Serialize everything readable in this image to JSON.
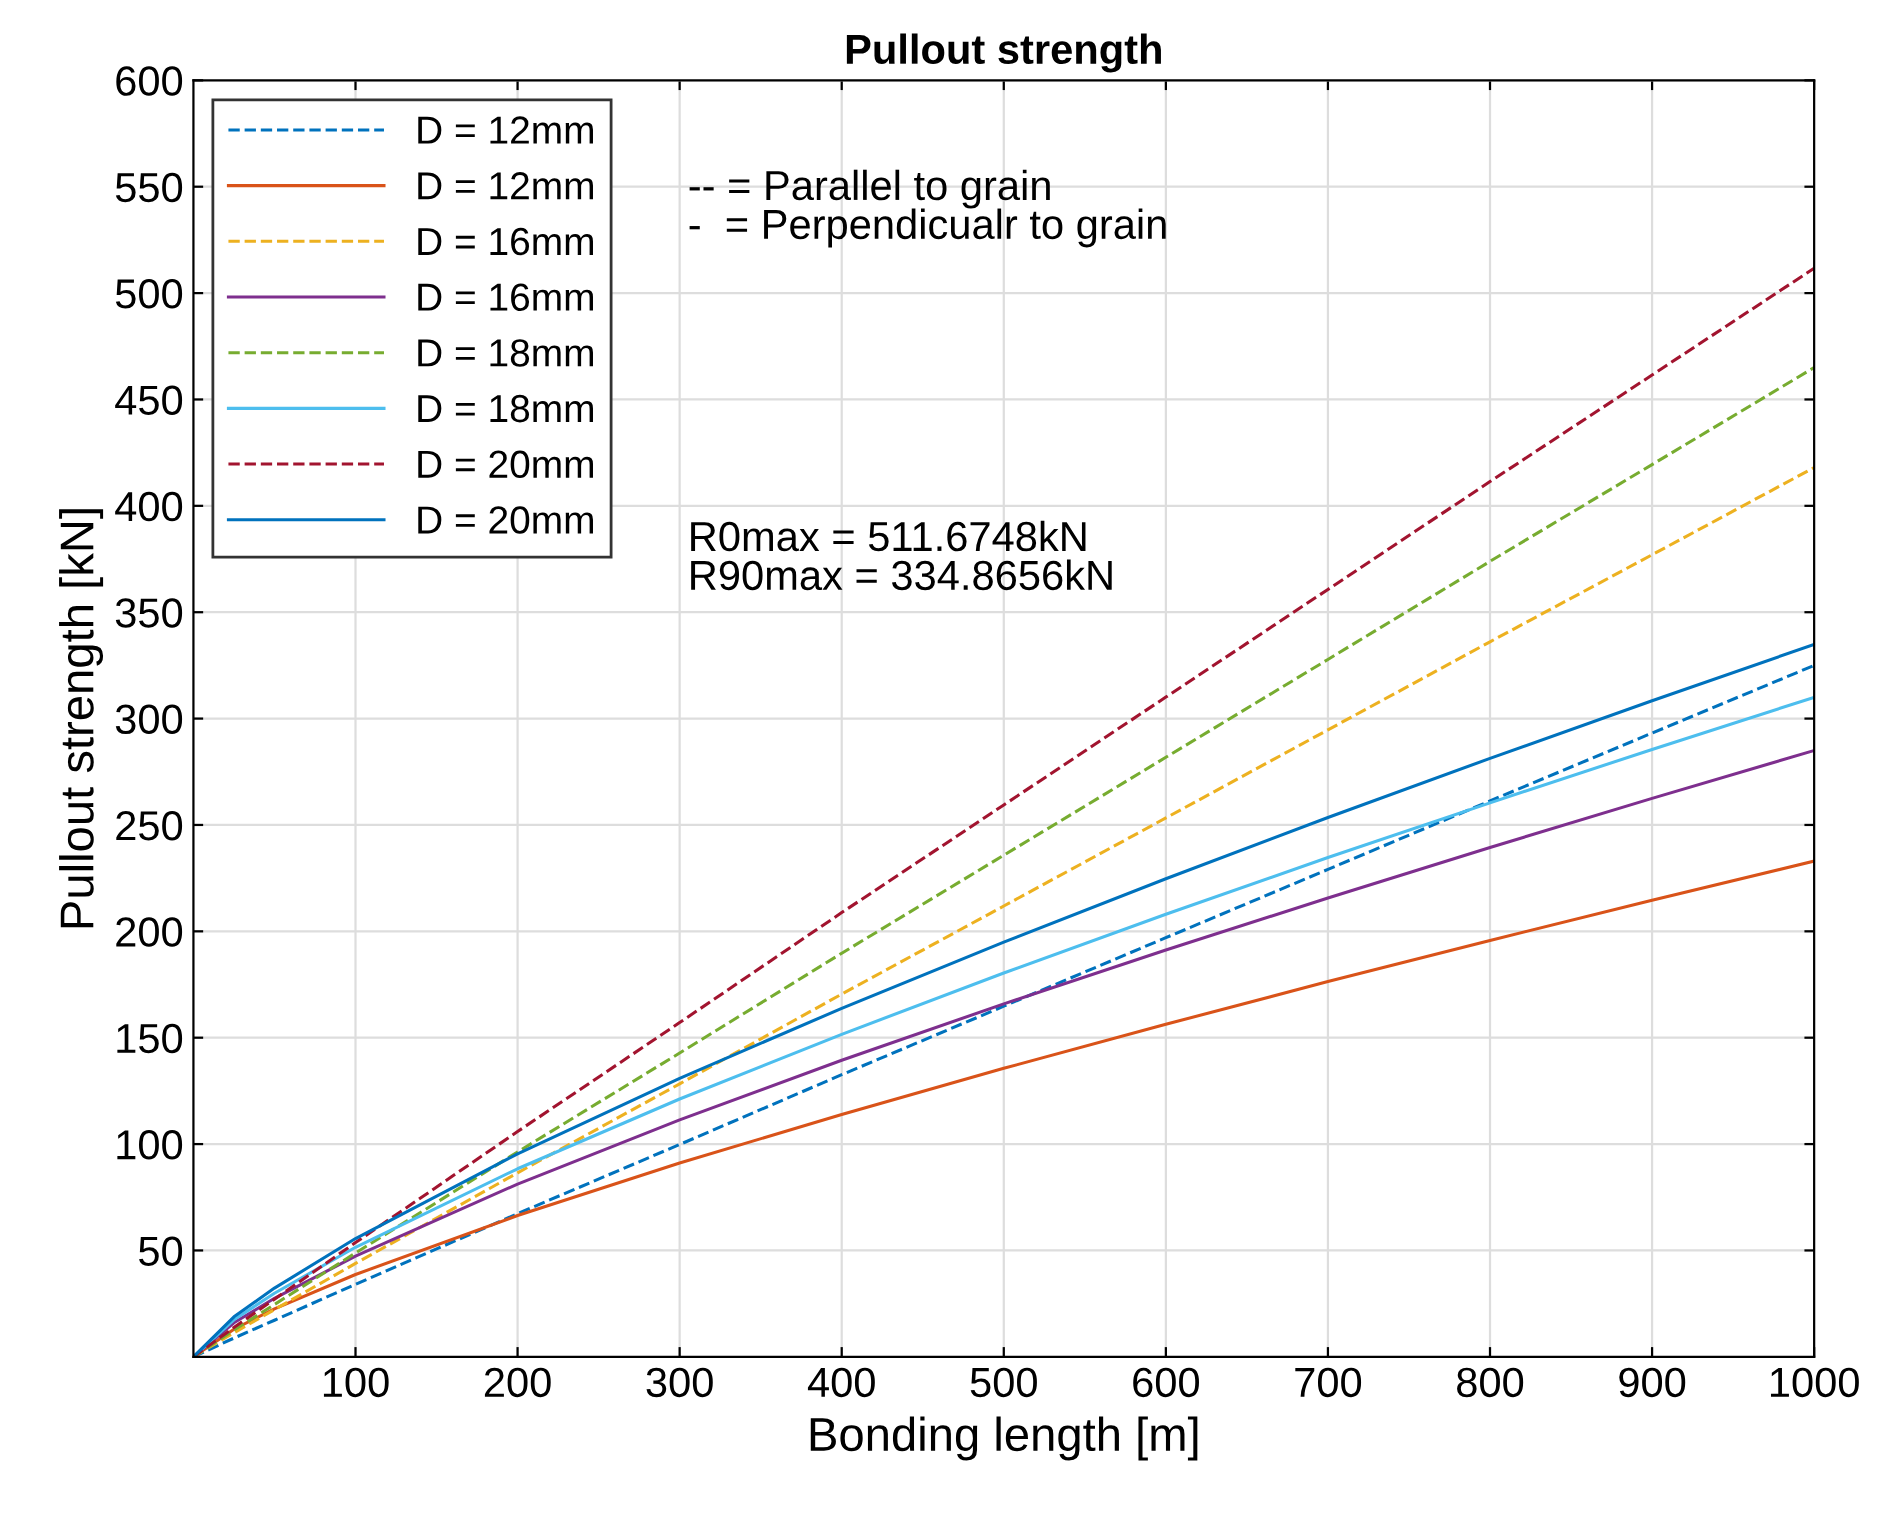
{
  "chart_data": {
    "type": "line",
    "title": "Pullout strength",
    "xlabel": "Bonding length [m]",
    "ylabel": "Pullout strength [kN]",
    "x": [
      0,
      25,
      50,
      100,
      200,
      300,
      400,
      500,
      600,
      700,
      800,
      900,
      1000
    ],
    "series": [
      {
        "name": "D = 12mm",
        "color": "#0072bd",
        "line_style": "dashed",
        "values": [
          0,
          8.8,
          17.2,
          34.1,
          67.3,
          99.8,
          132.6,
          164.8,
          197.0,
          229.1,
          261.3,
          293.2,
          325
        ]
      },
      {
        "name": "D = 12mm",
        "color": "#d95319",
        "line_style": "solid",
        "values": [
          0,
          13.0,
          22.5,
          38.7,
          66.4,
          91.1,
          113.9,
          135.6,
          156.3,
          176.4,
          195.7,
          214.6,
          233
        ]
      },
      {
        "name": "D = 16mm",
        "color": "#edb120",
        "line_style": "dashed",
        "values": [
          0,
          11.3,
          22.2,
          43.9,
          86.5,
          128.3,
          170.5,
          211.9,
          253.3,
          294.7,
          336.1,
          377.0,
          418
        ]
      },
      {
        "name": "D = 16mm",
        "color": "#7e2f8e",
        "line_style": "solid",
        "values": [
          0,
          16.0,
          27.5,
          47.3,
          81.2,
          111.4,
          139.4,
          165.9,
          191.2,
          215.7,
          239.4,
          262.5,
          285
        ]
      },
      {
        "name": "D = 18mm",
        "color": "#77ac30",
        "line_style": "dashed",
        "values": [
          0,
          12.6,
          24.6,
          48.8,
          96.3,
          142.8,
          189.7,
          235.8,
          281.8,
          327.8,
          373.9,
          419.4,
          465
        ]
      },
      {
        "name": "D = 18mm",
        "color": "#4dbeee",
        "line_style": "solid",
        "values": [
          0,
          17.4,
          29.9,
          51.5,
          88.4,
          121.2,
          151.6,
          180.4,
          208.0,
          234.7,
          260.4,
          285.5,
          310
        ]
      },
      {
        "name": "D = 20mm",
        "color": "#a2142f",
        "line_style": "dashed",
        "values": [
          0,
          13.8,
          27.1,
          53.7,
          105.9,
          157.1,
          208.8,
          259.4,
          310.1,
          360.7,
          411.4,
          461.5,
          511.67
        ]
      },
      {
        "name": "D = 20mm",
        "color": "#0072bd",
        "line_style": "solid",
        "values": [
          0,
          18.8,
          32.3,
          55.6,
          95.4,
          130.9,
          163.8,
          194.9,
          224.7,
          253.5,
          281.3,
          308.4,
          334.87
        ]
      }
    ],
    "xlim": [
      0,
      1000
    ],
    "xticks": [
      100,
      200,
      300,
      400,
      500,
      600,
      700,
      800,
      900,
      1000
    ],
    "ylim": [
      0,
      600
    ],
    "yticks": [
      50,
      100,
      150,
      200,
      250,
      300,
      350,
      400,
      450,
      500,
      550,
      600
    ],
    "grid": true,
    "legend": "top left",
    "annotations": [
      "-- = Parallel to grain\n-  = Perpendicualr to grain",
      "R0max = 511.6748kN\nR90max = 334.8656kN"
    ]
  }
}
